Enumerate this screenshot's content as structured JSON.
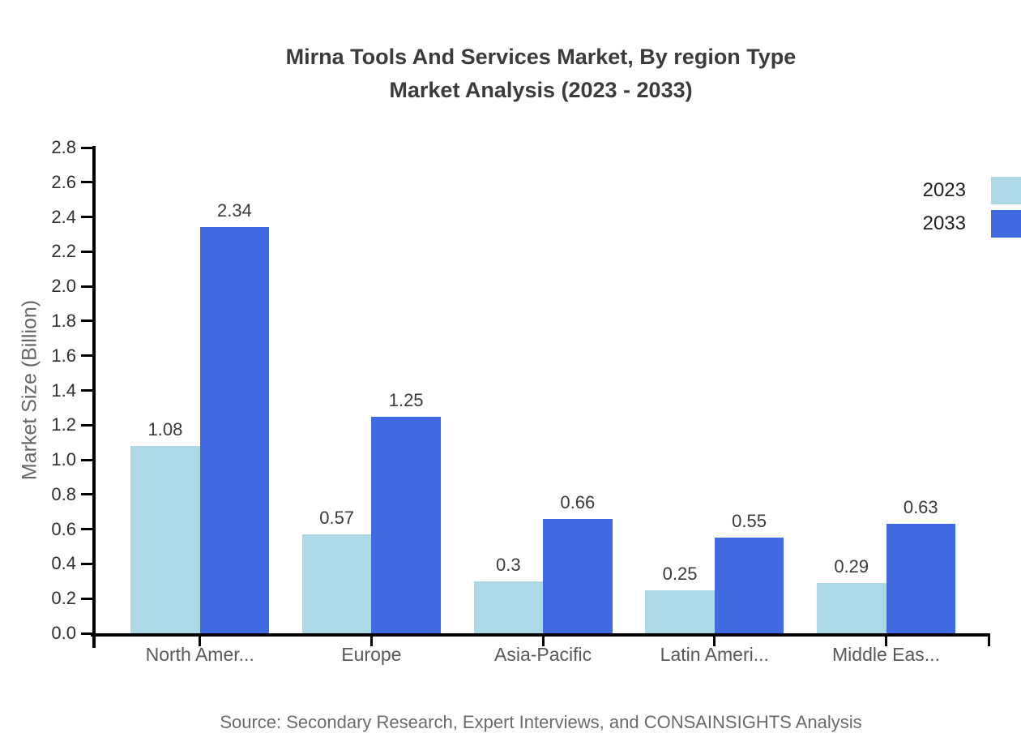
{
  "title": {
    "line1": "Mirna Tools And Services Market, By region Type",
    "line2": "Market Analysis (2023 - 2033)"
  },
  "chart_data": {
    "type": "bar",
    "categories": [
      "North Amer...",
      "Europe",
      "Asia-Pacific",
      "Latin Ameri...",
      "Middle Eas..."
    ],
    "series": [
      {
        "name": "2023",
        "color": "#ADD8E6",
        "values": [
          1.08,
          0.57,
          0.3,
          0.25,
          0.29
        ]
      },
      {
        "name": "2033",
        "color": "#4169E1",
        "values": [
          2.34,
          1.25,
          0.66,
          0.55,
          0.63
        ]
      }
    ],
    "xlabel": "",
    "ylabel": "Market Size (Billion)",
    "ylim": [
      0,
      2.8
    ],
    "ytick_step": 0.2,
    "grid": false,
    "legend_position": "top-right",
    "value_labels_shown": true
  },
  "source_note": "Source: Secondary Research, Expert Interviews, and CONSAINSIGHTS Analysis"
}
